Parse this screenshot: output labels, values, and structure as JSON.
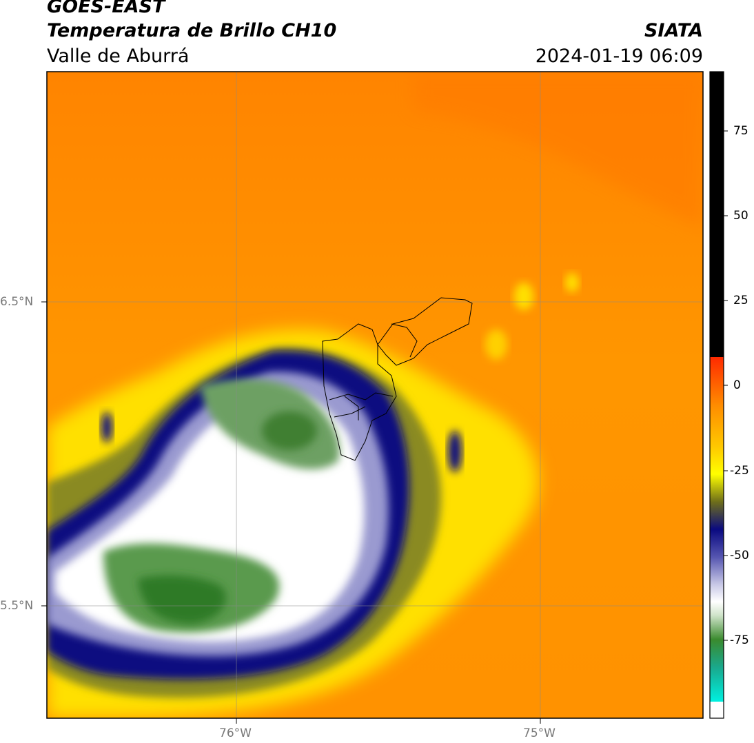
{
  "header": {
    "satellite": "GOES-EAST",
    "product": "Temperatura de Brillo CH10",
    "region": "Valle de Aburrá",
    "organization": "SIATA",
    "datetime": "2024-01-19 06:09"
  },
  "map": {
    "type": "satellite-brightness-temperature",
    "longitude_labels": [
      "76°W",
      "75°W"
    ],
    "latitude_labels": [
      "6.5°N",
      "5.5°N"
    ],
    "grid": true,
    "municipal_outlines": true
  },
  "colorbar": {
    "position": "right",
    "range": [
      -95,
      92
    ],
    "tick_labels": [
      "75",
      "50",
      "25",
      "0",
      "-25",
      "-50",
      "-75"
    ],
    "colors": {
      "black": "#000000",
      "red": "#ff2200",
      "orange": "#ff8c00",
      "yellow": "#ffff00",
      "dark_blue": "#0a0a80",
      "white": "#ffffff",
      "green": "#3a8a2e",
      "cyan": "#00f0e0"
    }
  }
}
